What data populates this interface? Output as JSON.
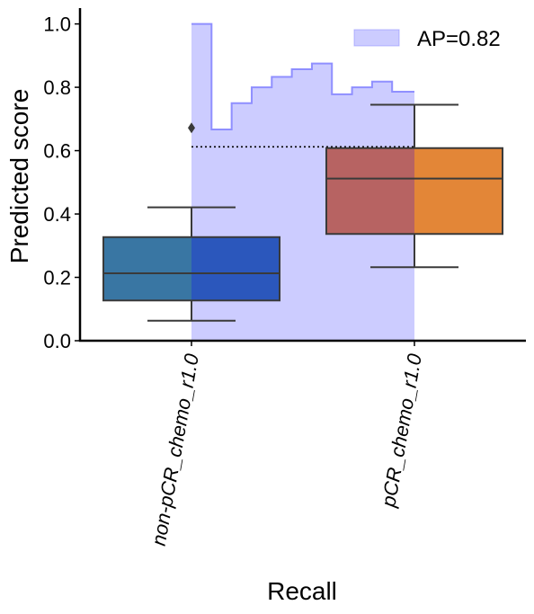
{
  "chart_data": {
    "type": "box",
    "xlabel": "Recall",
    "ylabel": "Predicted score",
    "ylim": [
      0,
      1.05
    ],
    "yticks": [
      "0.0",
      "0.2",
      "0.4",
      "0.6",
      "0.8",
      "1.0"
    ],
    "categories": [
      "non-pCR_chemo_r1.0",
      "pCR_chemo_r1.0"
    ],
    "boxes": [
      {
        "category": "non-pCR_chemo_r1.0",
        "whisker_low": 0.063,
        "q1": 0.127,
        "median": 0.213,
        "q3": 0.327,
        "whisker_high": 0.421,
        "outliers": [
          0.672
        ],
        "colors": [
          "#2e6f9e",
          "#2250b8"
        ]
      },
      {
        "category": "pCR_chemo_r1.0",
        "whisker_low": 0.232,
        "q1": 0.337,
        "median": 0.512,
        "q3": 0.608,
        "whisker_high": 0.745,
        "outliers": [],
        "colors": [
          "#b55d5a",
          "#e2802c"
        ]
      }
    ],
    "pr_curve": {
      "label": "AP=0.82",
      "x_range": [
        0,
        1
      ],
      "recall": [
        0.0,
        0.09,
        0.09,
        0.18,
        0.27,
        0.36,
        0.45,
        0.54,
        0.63,
        0.72,
        0.81,
        0.9,
        1.0
      ],
      "precision": [
        1.0,
        1.0,
        0.667,
        0.75,
        0.8,
        0.833,
        0.857,
        0.875,
        0.778,
        0.8,
        0.818,
        0.786,
        0.786
      ],
      "threshold": 0.612,
      "color": "#8080ff"
    },
    "legend": {
      "position": "top-right"
    },
    "grid": false
  }
}
